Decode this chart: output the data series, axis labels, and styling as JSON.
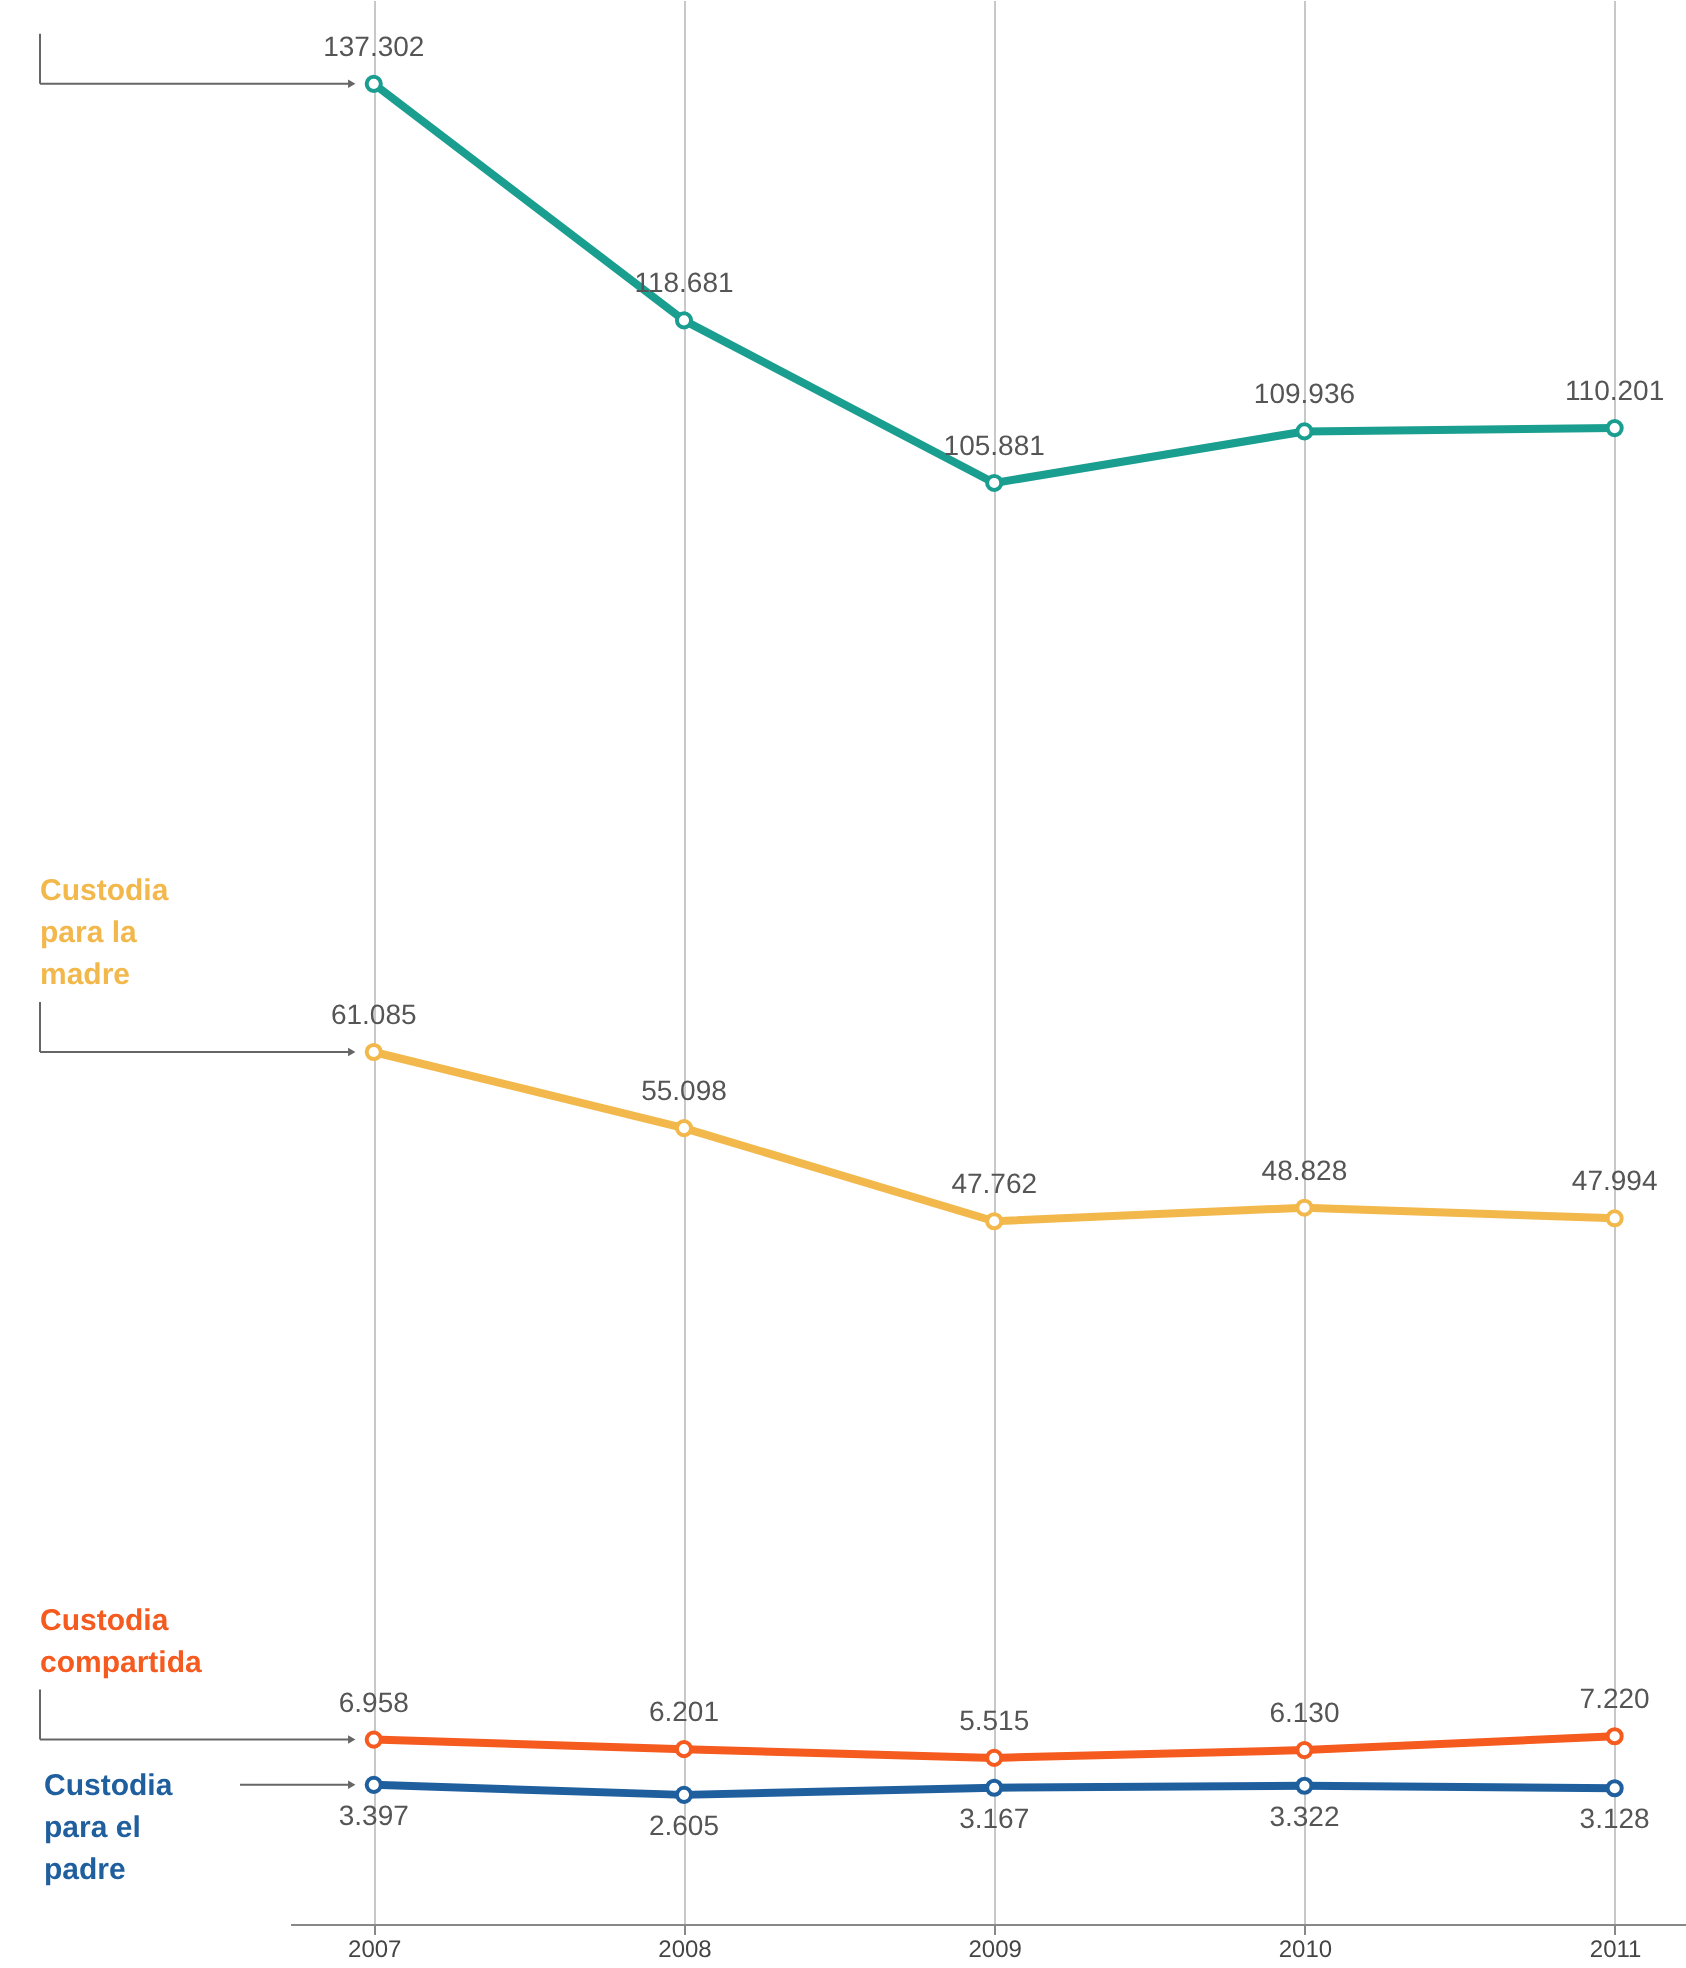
{
  "chart_data": {
    "type": "line",
    "x": [
      2007,
      2008,
      2009,
      2010,
      2011
    ],
    "xlim": [
      2006.73,
      2011.23
    ],
    "xticks": [
      2007,
      2008,
      2009,
      2010,
      2011
    ],
    "ylim": [
      -7560,
      143900
    ],
    "grid": "x",
    "marker": "circle",
    "line_style": "solid",
    "series": [
      {
        "color": "#1a9e8f",
        "values": [
          137302,
          118681,
          105881,
          109936,
          110201
        ],
        "value_labels": [
          "137.302",
          "118.681",
          "105.881",
          "109.936",
          "110.201"
        ]
      },
      {
        "name": "Custodia para la madre",
        "color": "#f2b84b",
        "values": [
          61085,
          55098,
          47762,
          48828,
          47994
        ],
        "value_labels": [
          "61.085",
          "55.098",
          "47.762",
          "48.828",
          "47.994"
        ]
      },
      {
        "name": "Custodia compartida",
        "color": "#f55a1e",
        "values": [
          6958,
          6201,
          5515,
          6130,
          7220
        ],
        "value_labels": [
          "6.958",
          "6.201",
          "5.515",
          "6.130",
          "7.220"
        ]
      },
      {
        "name": "Custodia para el padre",
        "color": "#1f5f9e",
        "values": [
          3397,
          2605,
          3167,
          3322,
          3128
        ],
        "value_labels": [
          "3.397",
          "2.605",
          "3.167",
          "3.322",
          "3.128"
        ]
      }
    ]
  }
}
